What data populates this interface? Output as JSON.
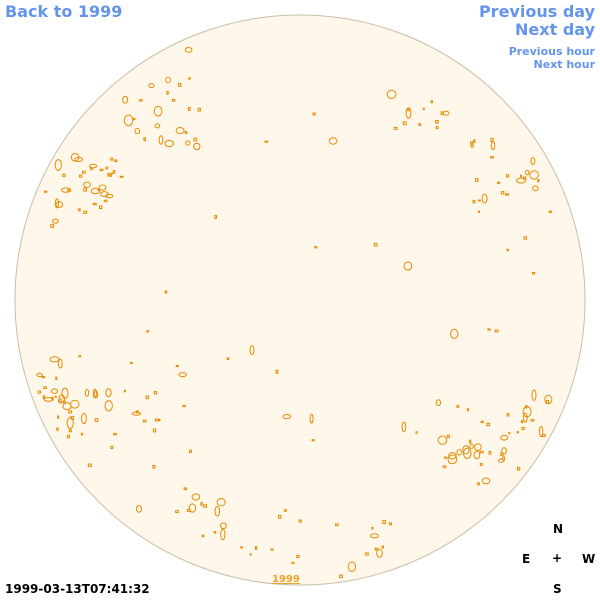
{
  "nav": {
    "back_label": "Back to 1999",
    "previous_day_label": "Previous day",
    "next_day_label": "Next day",
    "previous_hour_label": "Previous hour",
    "next_hour_label": "Next hour"
  },
  "timestamp": "1999-03-13T07:41:32",
  "year_label": "1999",
  "compass": {
    "north": "N",
    "east": "E",
    "center": "+",
    "west": "W",
    "south": "S"
  },
  "colors": {
    "disk_fill": "#fff8ea",
    "disk_outline": "#c8bea8",
    "contour": "#e88a00",
    "link": "#6495ed"
  }
}
